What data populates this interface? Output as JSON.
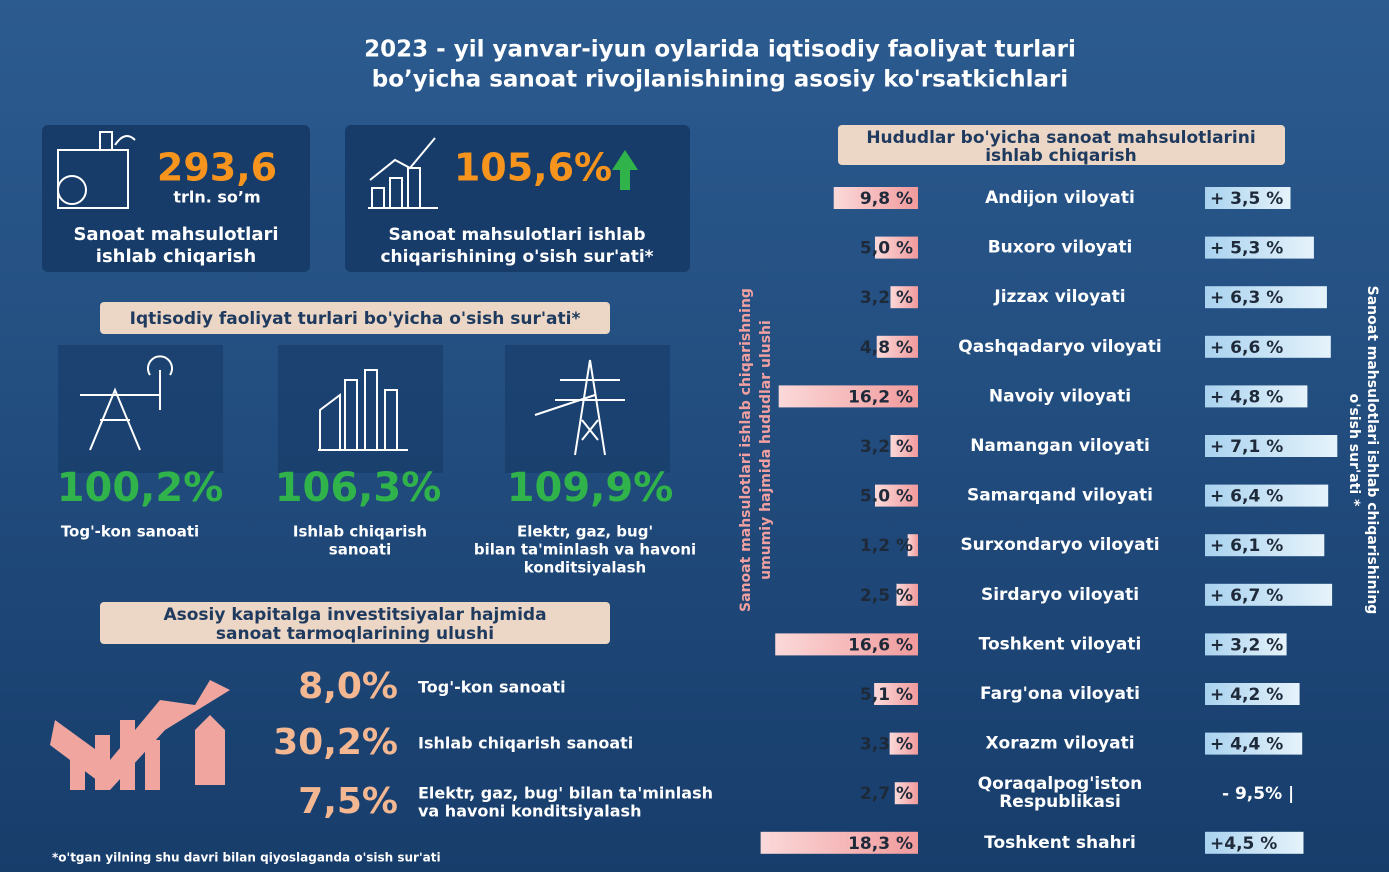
{
  "title": [
    "2023 - yil yanvar-iyun oylarida iqtisodiy faoliyat turlari",
    "bo’yicha sanoat rivojlanishining asosiy ko'rsatkichlari"
  ],
  "kpis": [
    {
      "value": "293,6",
      "unit": "trln. so’m",
      "label": [
        "Sanoat mahsulotlari",
        "ishlab chiqarish"
      ]
    },
    {
      "value": "105,6%",
      "label": [
        "Sanoat mahsulotlari ishlab",
        "chiqarishining o'sish sur'ati*"
      ]
    }
  ],
  "growth_section": {
    "heading": "Iqtisodiy faoliyat turlari bo'yicha o'sish sur'ati*",
    "items": [
      {
        "value": "100,2%",
        "label": [
          "Tog'-kon sanoati"
        ]
      },
      {
        "value": "106,3%",
        "label": [
          "Ishlab chiqarish",
          "sanoati"
        ]
      },
      {
        "value": "109,9%",
        "label": [
          "Elektr, gaz, bug'",
          "bilan ta'minlash va havoni",
          "konditsiyalash"
        ]
      }
    ]
  },
  "investment_section": {
    "heading": [
      "Asosiy kapitalga investitsiyalar hajmida",
      "sanoat tarmoqlarining ulushi"
    ],
    "items": [
      {
        "value": "8,0%",
        "label": [
          "Tog'-kon sanoati"
        ]
      },
      {
        "value": "30,2%",
        "label": [
          "Ishlab chiqarish sanoati"
        ]
      },
      {
        "value": "7,5%",
        "label": [
          "Elektr, gaz, bug' bilan ta'minlash",
          "va havoni konditsiyalash"
        ]
      }
    ]
  },
  "footnote": "*o'tgan yilning shu davri bilan qiyoslaganda o'sish sur'ati",
  "regions": {
    "heading": [
      "Hududlar bo'yicha sanoat  mahsulotlarini",
      "ishlab chiqarish"
    ],
    "left_axis_label": [
      "Sanoat mahsulotlari ishlab chiqarishning",
      "umumiy hajmida hududlar ulushi"
    ],
    "right_axis_label": [
      "Sanoat mahsulotlari ishlab chiqarishining",
      "o'sish sur'ati *"
    ],
    "rows": [
      {
        "share": {
          "value": 9.8,
          "label": "9,8 %"
        },
        "name": [
          "Andijon viloyati"
        ],
        "growth": {
          "value": 3.5,
          "label": "+ 3,5 %"
        }
      },
      {
        "share": {
          "value": 5.0,
          "label": "5,0 %"
        },
        "name": [
          "Buxoro viloyati"
        ],
        "growth": {
          "value": 5.3,
          "label": "+ 5,3 %"
        }
      },
      {
        "share": {
          "value": 3.2,
          "label": "3,2 %"
        },
        "name": [
          "Jizzax viloyati"
        ],
        "growth": {
          "value": 6.3,
          "label": "+ 6,3 %"
        }
      },
      {
        "share": {
          "value": 4.8,
          "label": "4,8 %"
        },
        "name": [
          "Qashqadaryo viloyati"
        ],
        "growth": {
          "value": 6.6,
          "label": "+ 6,6 %"
        }
      },
      {
        "share": {
          "value": 16.2,
          "label": "16,2 %"
        },
        "name": [
          "Navoiy viloyati"
        ],
        "growth": {
          "value": 4.8,
          "label": "+ 4,8 %"
        }
      },
      {
        "share": {
          "value": 3.2,
          "label": "3,2 %"
        },
        "name": [
          "Namangan viloyati"
        ],
        "growth": {
          "value": 7.1,
          "label": "+ 7,1 %"
        }
      },
      {
        "share": {
          "value": 5.0,
          "label": "5.0 %"
        },
        "name": [
          "Samarqand viloyati"
        ],
        "growth": {
          "value": 6.4,
          "label": "+ 6,4 %"
        }
      },
      {
        "share": {
          "value": 1.2,
          "label": "1,2 %"
        },
        "name": [
          "Surxondaryo viloyati"
        ],
        "growth": {
          "value": 6.1,
          "label": "+ 6,1 %"
        }
      },
      {
        "share": {
          "value": 2.5,
          "label": "2,5 %"
        },
        "name": [
          "Sirdaryo viloyati"
        ],
        "growth": {
          "value": 6.7,
          "label": "+ 6,7 %"
        }
      },
      {
        "share": {
          "value": 16.6,
          "label": "16,6 %"
        },
        "name": [
          "Toshkent viloyati"
        ],
        "growth": {
          "value": 3.2,
          "label": "+ 3,2 %"
        }
      },
      {
        "share": {
          "value": 5.1,
          "label": "5,1 %"
        },
        "name": [
          "Farg'ona viloyati"
        ],
        "growth": {
          "value": 4.2,
          "label": "+ 4,2 %"
        }
      },
      {
        "share": {
          "value": 3.3,
          "label": "3,3 %"
        },
        "name": [
          "Xorazm viloyati"
        ],
        "growth": {
          "value": 4.4,
          "label": "+ 4,4 %"
        }
      },
      {
        "share": {
          "value": 2.7,
          "label": "2,7 %"
        },
        "name": [
          "Qoraqalpog'iston",
          "Respublikasi"
        ],
        "growth": {
          "value": -9.5,
          "label": "- 9,5% |"
        }
      },
      {
        "share": {
          "value": 18.3,
          "label": "18,3 %"
        },
        "name": [
          "Toshkent shahri"
        ],
        "growth": {
          "value": 4.5,
          "label": "+4,5 %"
        }
      }
    ]
  }
}
